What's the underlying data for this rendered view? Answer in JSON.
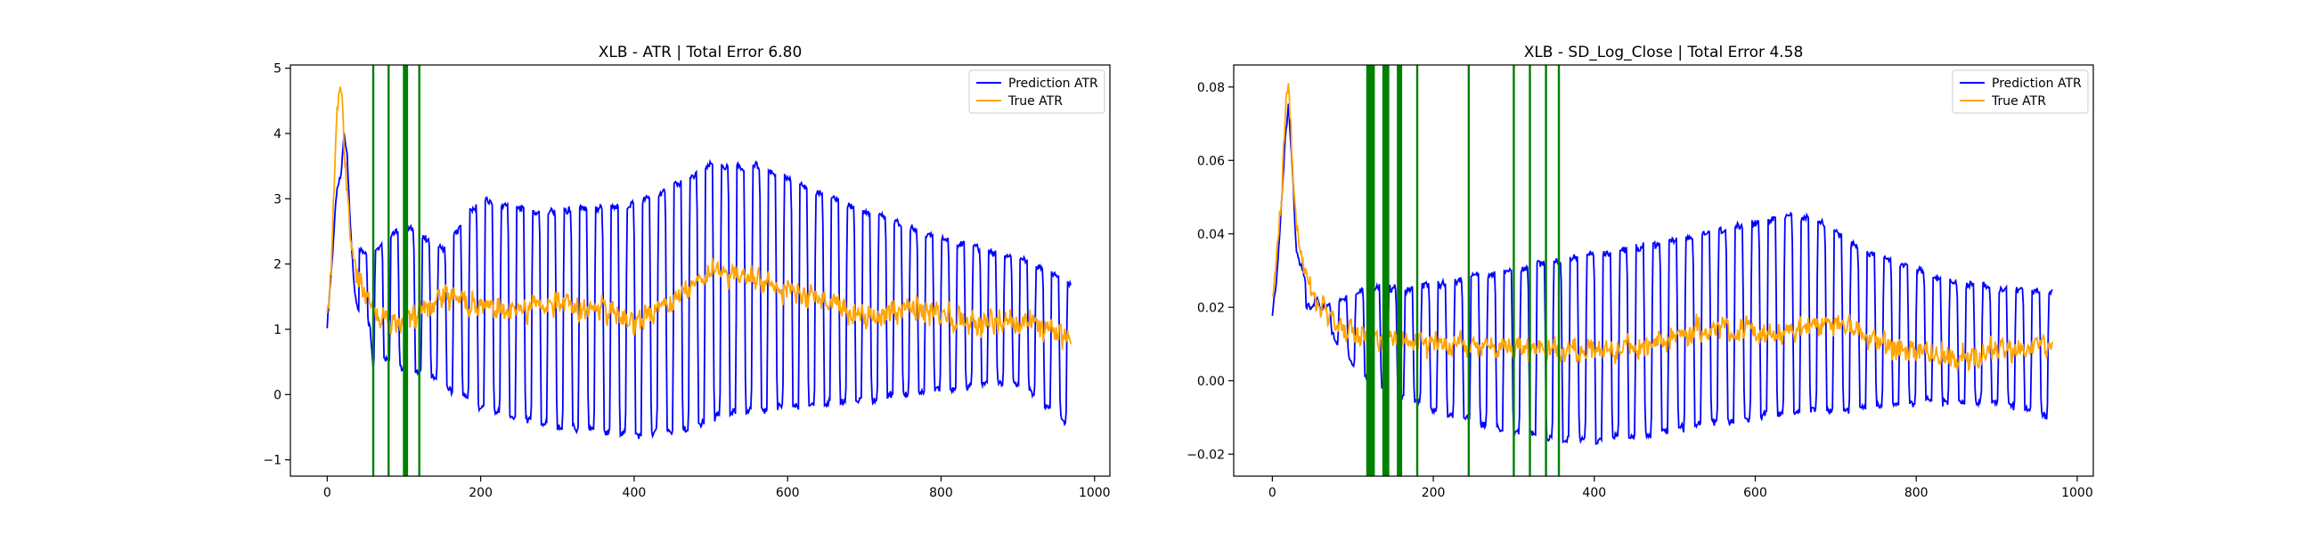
{
  "chart_data": [
    {
      "type": "line",
      "title": "XLB - ATR | Total Error 6.80",
      "xlabel": "",
      "ylabel": "",
      "xlim": [
        -48,
        1020
      ],
      "ylim": [
        -1.25,
        5.05
      ],
      "xticks": [
        0,
        200,
        400,
        600,
        800,
        1000
      ],
      "yticks": [
        -1,
        0,
        1,
        2,
        3,
        4,
        5
      ],
      "legend": "top-right",
      "grid": false,
      "n_points": 970,
      "series": [
        {
          "name": "Prediction ATR",
          "color": "#0000ff",
          "anchors": [
            [
              0,
              1.1
            ],
            [
              6,
              2.0
            ],
            [
              12,
              3.1
            ],
            [
              18,
              3.35
            ],
            [
              22,
              4.0
            ],
            [
              26,
              3.7
            ],
            [
              30,
              2.6
            ],
            [
              36,
              1.5
            ],
            [
              42,
              1.2
            ],
            [
              56,
              1.0
            ],
            [
              60,
              0.4
            ],
            [
              70,
              0.6
            ],
            [
              100,
              0.4
            ],
            [
              140,
              0.25
            ],
            [
              200,
              -0.2
            ],
            [
              300,
              -0.5
            ],
            [
              400,
              -0.6
            ],
            [
              470,
              -0.55
            ],
            [
              520,
              -0.3
            ],
            [
              600,
              -0.2
            ],
            [
              700,
              -0.1
            ],
            [
              800,
              0.1
            ],
            [
              900,
              0.2
            ],
            [
              970,
              -0.5
            ]
          ],
          "highs": [
            [
              60,
              2.2
            ],
            [
              100,
              2.6
            ],
            [
              150,
              2.2
            ],
            [
              200,
              3.0
            ],
            [
              260,
              2.8
            ],
            [
              320,
              2.8
            ],
            [
              400,
              2.9
            ],
            [
              470,
              3.3
            ],
            [
              500,
              3.5
            ],
            [
              560,
              3.5
            ],
            [
              620,
              3.2
            ],
            [
              700,
              2.8
            ],
            [
              800,
              2.4
            ],
            [
              900,
              2.1
            ],
            [
              970,
              1.7
            ]
          ],
          "period": 20.5
        },
        {
          "name": "True ATR",
          "color": "#ffa500",
          "anchors": [
            [
              0,
              1.2
            ],
            [
              6,
              2.2
            ],
            [
              12,
              4.0
            ],
            [
              16,
              4.75
            ],
            [
              20,
              4.4
            ],
            [
              26,
              3.0
            ],
            [
              32,
              2.3
            ],
            [
              40,
              1.8
            ],
            [
              50,
              1.4
            ],
            [
              70,
              1.2
            ],
            [
              100,
              1.1
            ],
            [
              150,
              1.5
            ],
            [
              200,
              1.35
            ],
            [
              250,
              1.3
            ],
            [
              300,
              1.4
            ],
            [
              350,
              1.3
            ],
            [
              400,
              1.1
            ],
            [
              450,
              1.4
            ],
            [
              500,
              1.9
            ],
            [
              550,
              1.85
            ],
            [
              600,
              1.6
            ],
            [
              650,
              1.4
            ],
            [
              700,
              1.2
            ],
            [
              750,
              1.3
            ],
            [
              800,
              1.2
            ],
            [
              850,
              1.1
            ],
            [
              900,
              1.1
            ],
            [
              950,
              1.0
            ],
            [
              970,
              0.8
            ]
          ]
        }
      ],
      "vlines": {
        "color": "#008000",
        "positions": [
          60,
          80,
          100,
          102,
          104,
          120
        ]
      }
    },
    {
      "type": "line",
      "title": "XLB - SD_Log_Close | Total Error 4.58",
      "xlabel": "",
      "ylabel": "",
      "xlim": [
        -48,
        1020
      ],
      "ylim": [
        -0.026,
        0.086
      ],
      "xticks": [
        0,
        200,
        400,
        600,
        800,
        1000
      ],
      "yticks": [
        -0.02,
        0.0,
        0.02,
        0.04,
        0.06,
        0.08
      ],
      "legend": "top-right",
      "grid": false,
      "n_points": 970,
      "series": [
        {
          "name": "Prediction ATR",
          "color": "#0000ff",
          "anchors": [
            [
              0,
              0.017
            ],
            [
              6,
              0.03
            ],
            [
              12,
              0.05
            ],
            [
              16,
              0.065
            ],
            [
              20,
              0.075
            ],
            [
              24,
              0.06
            ],
            [
              30,
              0.035
            ],
            [
              40,
              0.028
            ],
            [
              60,
              0.02
            ],
            [
              80,
              0.01
            ],
            [
              120,
              0.0
            ],
            [
              160,
              -0.004
            ],
            [
              200,
              -0.008
            ],
            [
              260,
              -0.012
            ],
            [
              300,
              -0.014
            ],
            [
              360,
              -0.016
            ],
            [
              400,
              -0.016
            ],
            [
              470,
              -0.015
            ],
            [
              520,
              -0.012
            ],
            [
              600,
              -0.01
            ],
            [
              700,
              -0.008
            ],
            [
              800,
              -0.006
            ],
            [
              900,
              -0.006
            ],
            [
              970,
              -0.01
            ]
          ],
          "highs": [
            [
              60,
              0.02
            ],
            [
              120,
              0.025
            ],
            [
              180,
              0.025
            ],
            [
              240,
              0.028
            ],
            [
              300,
              0.03
            ],
            [
              360,
              0.033
            ],
            [
              420,
              0.035
            ],
            [
              480,
              0.037
            ],
            [
              540,
              0.04
            ],
            [
              600,
              0.043
            ],
            [
              640,
              0.045
            ],
            [
              680,
              0.043
            ],
            [
              740,
              0.035
            ],
            [
              800,
              0.03
            ],
            [
              860,
              0.026
            ],
            [
              900,
              0.025
            ],
            [
              970,
              0.024
            ]
          ],
          "period": 20.5
        },
        {
          "name": "True ATR",
          "color": "#ffa500",
          "anchors": [
            [
              0,
              0.02
            ],
            [
              6,
              0.035
            ],
            [
              12,
              0.05
            ],
            [
              16,
              0.072
            ],
            [
              20,
              0.08
            ],
            [
              24,
              0.065
            ],
            [
              30,
              0.04
            ],
            [
              40,
              0.03
            ],
            [
              60,
              0.02
            ],
            [
              80,
              0.015
            ],
            [
              120,
              0.012
            ],
            [
              200,
              0.01
            ],
            [
              300,
              0.009
            ],
            [
              400,
              0.008
            ],
            [
              450,
              0.009
            ],
            [
              500,
              0.012
            ],
            [
              550,
              0.015
            ],
            [
              600,
              0.013
            ],
            [
              650,
              0.014
            ],
            [
              700,
              0.016
            ],
            [
              750,
              0.01
            ],
            [
              800,
              0.008
            ],
            [
              850,
              0.006
            ],
            [
              900,
              0.008
            ],
            [
              950,
              0.009
            ],
            [
              970,
              0.007
            ]
          ]
        }
      ],
      "vlines": {
        "color": "#008000",
        "positions": [
          118,
          120,
          122,
          124,
          126,
          138,
          140,
          142,
          144,
          156,
          158,
          160,
          180,
          244,
          300,
          320,
          340,
          356
        ]
      }
    }
  ]
}
